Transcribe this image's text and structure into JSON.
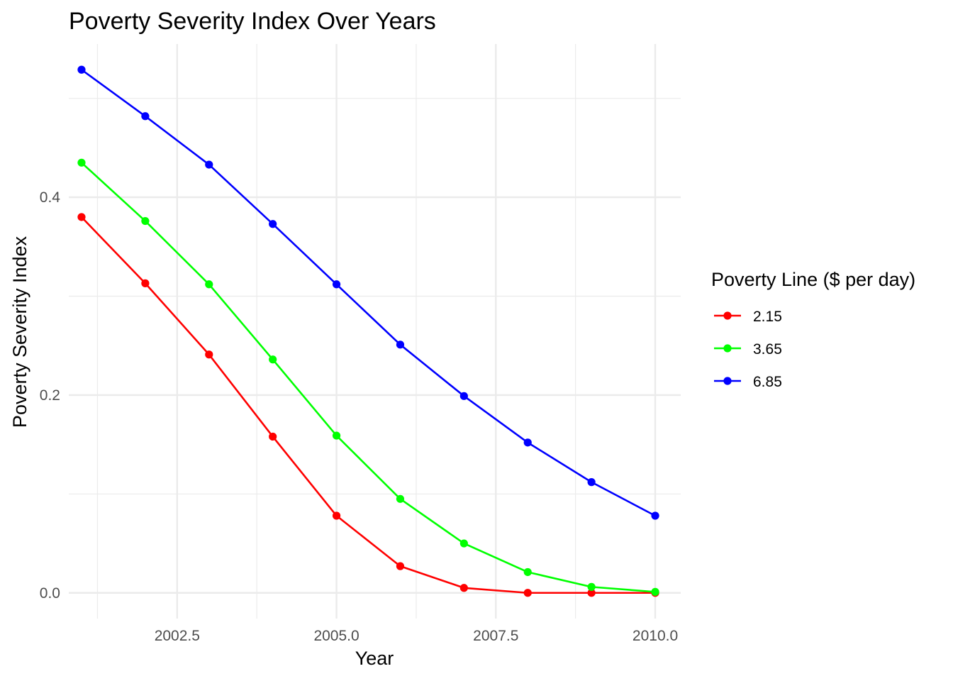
{
  "chart_data": {
    "type": "line",
    "title": "Poverty Severity Index Over Years",
    "xlabel": "Year",
    "ylabel": "Poverty Severity Index",
    "legend_title": "Poverty Line ($ per day)",
    "legend_position": "right",
    "grid": true,
    "x": [
      2001,
      2002,
      2003,
      2004,
      2005,
      2006,
      2007,
      2008,
      2009,
      2010
    ],
    "xlim": [
      2000.8,
      2010.4
    ],
    "ylim": [
      -0.026,
      0.555
    ],
    "x_ticks": [
      {
        "value": 2002.5,
        "label": "2002.5"
      },
      {
        "value": 2005.0,
        "label": "2005.0"
      },
      {
        "value": 2007.5,
        "label": "2007.5"
      },
      {
        "value": 2010.0,
        "label": "2010.0"
      }
    ],
    "x_minor_ticks": [
      2001.25,
      2003.75,
      2006.25,
      2008.75
    ],
    "y_ticks": [
      {
        "value": 0.0,
        "label": "0.0"
      },
      {
        "value": 0.2,
        "label": "0.2"
      },
      {
        "value": 0.4,
        "label": "0.4"
      }
    ],
    "y_minor_ticks": [
      0.1,
      0.3,
      0.5
    ],
    "series": [
      {
        "name": "2.15",
        "color": "#ff0000",
        "values": [
          0.38,
          0.313,
          0.241,
          0.158,
          0.078,
          0.027,
          0.005,
          0.0,
          0.0,
          0.0
        ]
      },
      {
        "name": "3.65",
        "color": "#00ff00",
        "values": [
          0.435,
          0.376,
          0.312,
          0.236,
          0.159,
          0.095,
          0.05,
          0.021,
          0.006,
          0.001
        ]
      },
      {
        "name": "6.85",
        "color": "#0000ff",
        "values": [
          0.529,
          0.482,
          0.433,
          0.373,
          0.312,
          0.251,
          0.199,
          0.152,
          0.112,
          0.078
        ]
      }
    ]
  }
}
